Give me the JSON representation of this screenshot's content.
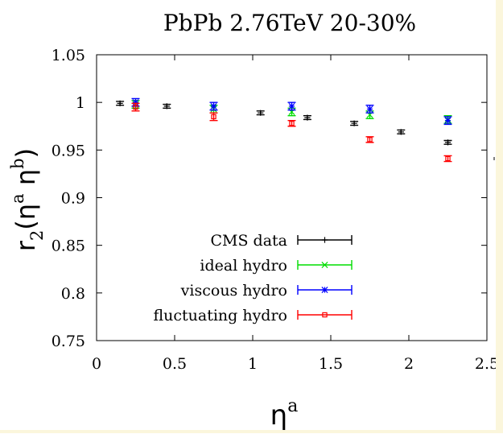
{
  "chart_data": {
    "type": "scatter",
    "title": "PbPb 2.76TeV 20-30%",
    "xlabel": "η",
    "xlabel_sup": "a",
    "ylabel_main": "r",
    "ylabel_sub": "2",
    "ylabel_rest": "(η",
    "ylabel_sup1": "a",
    "ylabel_mid": " η",
    "ylabel_sup2": "b",
    "ylabel_close": ")",
    "xlim": [
      0,
      2.5
    ],
    "ylim": [
      0.75,
      1.05
    ],
    "xticks": [
      {
        "v": 0,
        "label": "0"
      },
      {
        "v": 0.5,
        "label": "0.5"
      },
      {
        "v": 1,
        "label": "1"
      },
      {
        "v": 1.5,
        "label": "1.5"
      },
      {
        "v": 2,
        "label": "2"
      },
      {
        "v": 2.5,
        "label": "2.5"
      }
    ],
    "yticks": [
      {
        "v": 0.75,
        "label": "0.75"
      },
      {
        "v": 0.8,
        "label": "0.8"
      },
      {
        "v": 0.85,
        "label": "0.85"
      },
      {
        "v": 0.9,
        "label": "0.9"
      },
      {
        "v": 0.95,
        "label": "0.95"
      },
      {
        "v": 1,
        "label": "1"
      },
      {
        "v": 1.05,
        "label": "1.05"
      }
    ],
    "legend_position": "bottom-center",
    "series": [
      {
        "name": "CMS data",
        "color": "#000000",
        "marker": "plus",
        "x": [
          0.15,
          0.45,
          1.05,
          1.35,
          1.65,
          1.95,
          2.25
        ],
        "y": [
          0.999,
          0.996,
          0.989,
          0.984,
          0.978,
          0.969,
          0.958
        ],
        "err": [
          0.002,
          0.002,
          0.002,
          0.002,
          0.002,
          0.002,
          0.002
        ]
      },
      {
        "name": "ideal hydro",
        "color": "#00dd00",
        "marker": "cross",
        "x": [
          0.25,
          0.75,
          1.25,
          1.75,
          2.25
        ],
        "y": [
          0.998,
          0.993,
          0.99,
          0.987,
          0.982
        ],
        "err": [
          0.004,
          0.004,
          0.004,
          0.004,
          0.004
        ]
      },
      {
        "name": "viscous hydro",
        "color": "#0000ff",
        "marker": "star",
        "x": [
          0.25,
          0.75,
          1.25,
          1.75,
          2.25
        ],
        "y": [
          1.0,
          0.996,
          0.996,
          0.993,
          0.981
        ],
        "err": [
          0.004,
          0.004,
          0.004,
          0.004,
          0.004
        ]
      },
      {
        "name": "fluctuating hydro",
        "color": "#ff0000",
        "marker": "square",
        "x": [
          0.25,
          0.75,
          1.25,
          1.75,
          2.25
        ],
        "y": [
          0.995,
          0.985,
          0.978,
          0.961,
          0.941
        ],
        "err": [
          0.004,
          0.004,
          0.003,
          0.003,
          0.003
        ]
      }
    ]
  }
}
